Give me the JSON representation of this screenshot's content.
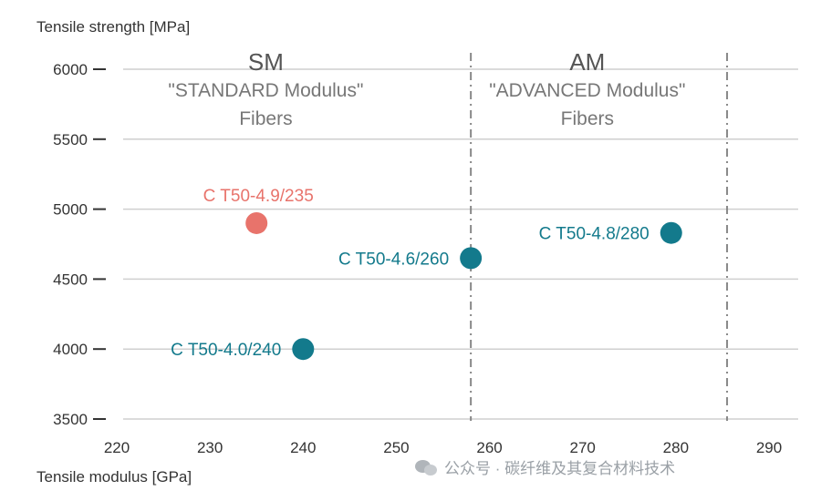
{
  "chart_data": {
    "type": "scatter",
    "xlabel": "Tensile modulus [GPa]",
    "ylabel": "Tensile strength [MPa]",
    "xlim": [
      220,
      290
    ],
    "ylim": [
      3500,
      6000
    ],
    "xticks": [
      "220",
      "230",
      "240",
      "250",
      "260",
      "270",
      "280",
      "290"
    ],
    "yticks": [
      "3500",
      "4000",
      "4500",
      "5000",
      "5500",
      "6000"
    ],
    "grid": "horizontal",
    "dividers_x": [
      258,
      285.5
    ],
    "regions": [
      {
        "abbr": "SM",
        "line1": "\"STANDARD Modulus\"",
        "line2": "Fibers",
        "x_center": 236
      },
      {
        "abbr": "AM",
        "line1": "\"ADVANCED Modulus\"",
        "line2": "Fibers",
        "x_center": 270.5
      }
    ],
    "points": [
      {
        "label": "C T50-4.9/235",
        "x": 235,
        "y": 4900,
        "color": "#e8736b",
        "label_pos": "above"
      },
      {
        "label": "C T50-4.6/260",
        "x": 258,
        "y": 4650,
        "color": "#137a8c",
        "label_pos": "left"
      },
      {
        "label": "C T50-4.8/280",
        "x": 279.5,
        "y": 4830,
        "color": "#137a8c",
        "label_pos": "left"
      },
      {
        "label": "C T50-4.0/240",
        "x": 240,
        "y": 4000,
        "color": "#137a8c",
        "label_pos": "left"
      }
    ]
  },
  "watermark": "公众号 · 碳纤维及其复合材料技术"
}
